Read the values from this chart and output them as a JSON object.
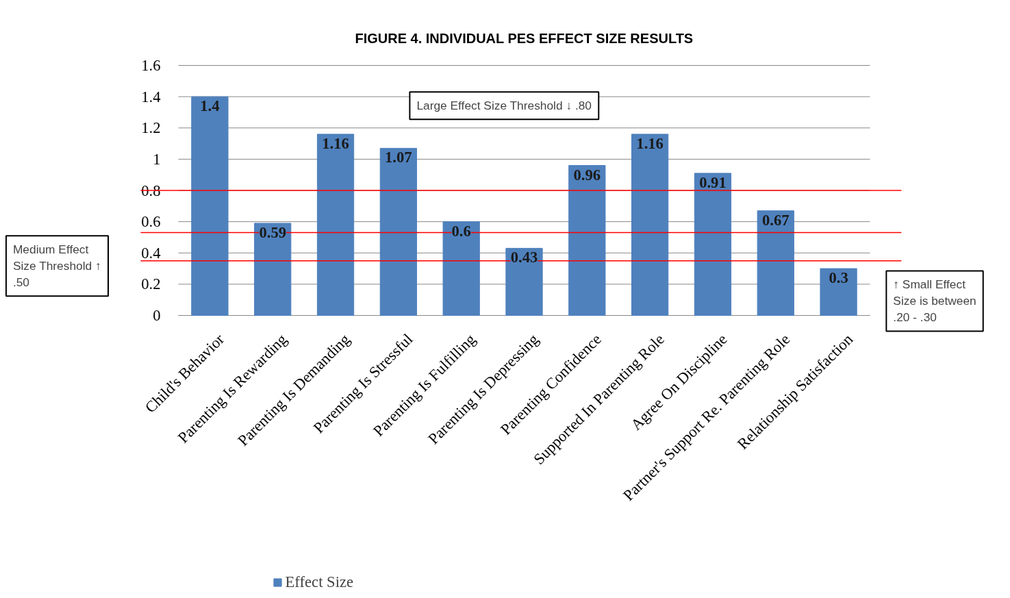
{
  "chart_data": {
    "type": "bar",
    "title": "FIGURE 4. INDIVIDUAL PES EFFECT SIZE RESULTS",
    "categories": [
      "Child's Behavior",
      "Parenting Is Rewarding",
      "Parenting Is Demanding",
      "Parenting Is Stressful",
      "Parenting Is Fulfilling",
      "Parenting Is Depressing",
      "Parenting Confidence",
      "Supported In Parenting Role",
      "Agree On Discipline",
      "Partner's Support Re. Parenting Role",
      "Relationship Satisfaction"
    ],
    "series": [
      {
        "name": "Effect Size",
        "color": "#4f81bd",
        "values": [
          1.4,
          0.59,
          1.16,
          1.07,
          0.6,
          0.43,
          0.96,
          1.16,
          0.91,
          0.67,
          0.3
        ]
      }
    ],
    "data_labels": true,
    "ylim": [
      0,
      1.6
    ],
    "yticks": [
      0,
      0.2,
      0.4,
      0.6,
      0.8,
      1,
      1.2,
      1.4,
      1.6
    ],
    "grid": "y",
    "legend": "bottom",
    "ref_lines": [
      {
        "axis": "y",
        "value": 0.8,
        "color": "#ff0000"
      },
      {
        "axis": "y",
        "value": 0.53,
        "color": "#ff0000"
      },
      {
        "axis": "y",
        "value": 0.35,
        "color": "#ff0000"
      }
    ],
    "annotations": [
      "Large Effect Size Threshold ↓ .80",
      "Medium Effect\nSize Threshold ↑\n.50",
      "↑ Small Effect\nSize is between\n.20 - .30"
    ]
  }
}
